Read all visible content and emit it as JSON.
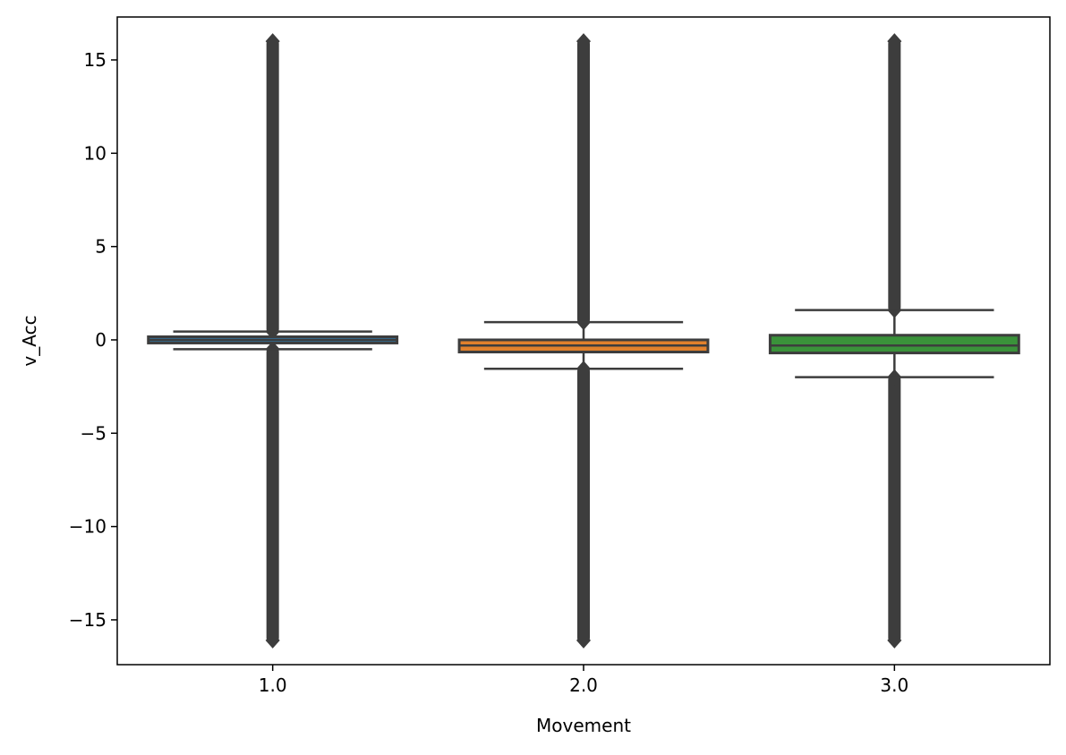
{
  "chart_data": {
    "type": "box",
    "xlabel": "Movement",
    "ylabel": "v_Acc",
    "ylim": [
      -17.4,
      17.3
    ],
    "yticks": [
      15,
      10,
      5,
      0,
      -5,
      -10,
      -15
    ],
    "ytick_labels": [
      "15",
      "10",
      "5",
      "0",
      "−5",
      "−10",
      "−15"
    ],
    "categories": [
      "1.0",
      "2.0",
      "3.0"
    ],
    "boxes": [
      {
        "category": "1.0",
        "color": "#3274a1",
        "whislo": -0.5,
        "q1": -0.15,
        "med": 0.0,
        "q3": 0.15,
        "whishi": 0.45,
        "outlier_range": [
          [
            -16.1,
            -0.5
          ],
          [
            0.45,
            16.0
          ]
        ]
      },
      {
        "category": "2.0",
        "color": "#e1812c",
        "whislo": -1.55,
        "q1": -0.65,
        "med": -0.3,
        "q3": 0.0,
        "whishi": 0.95,
        "outlier_range": [
          [
            -16.1,
            -1.55
          ],
          [
            0.95,
            16.0
          ]
        ]
      },
      {
        "category": "3.0",
        "color": "#3a923a",
        "whislo": -2.0,
        "q1": -0.7,
        "med": -0.3,
        "q3": 0.25,
        "whishi": 1.6,
        "outlier_range": [
          [
            -16.1,
            -2.0
          ],
          [
            1.6,
            16.0
          ]
        ]
      }
    ],
    "legend": "none",
    "grid": false
  }
}
